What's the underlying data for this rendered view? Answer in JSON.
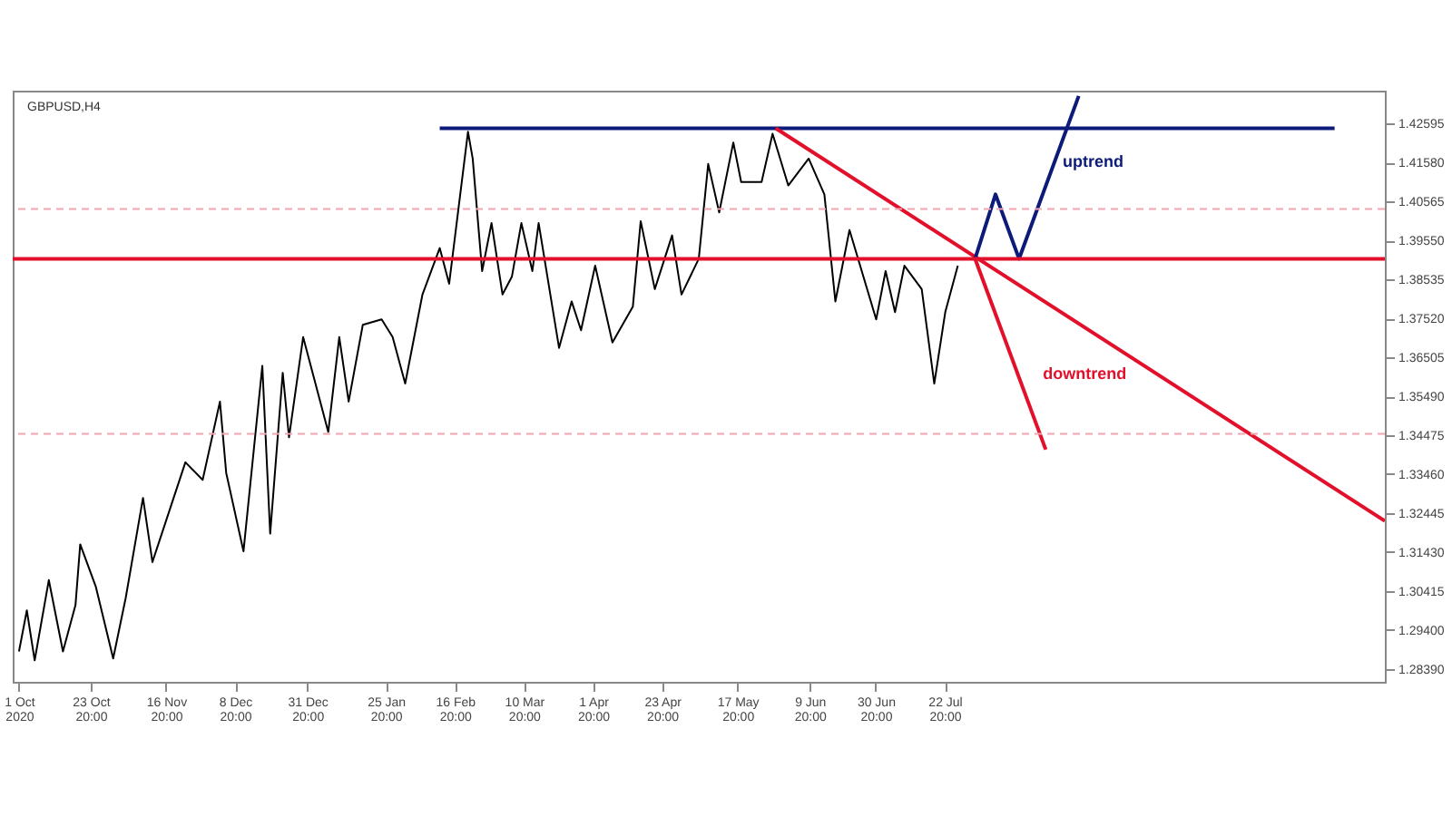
{
  "chart_data": {
    "type": "line",
    "title": "GBPUSD,H4",
    "xlim": [
      "2020-09-29T00:00",
      "2021-12-10T00:00"
    ],
    "ylim": [
      1.2805,
      1.4345
    ],
    "xticks": [
      {
        "value": "2020-10-01T00:00",
        "label": "1 Oct 2020"
      },
      {
        "value": "2020-10-23T20:00",
        "label": "23 Oct 20:00"
      },
      {
        "value": "2020-11-16T20:00",
        "label": "16 Nov 20:00"
      },
      {
        "value": "2020-12-08T20:00",
        "label": "8 Dec 20:00"
      },
      {
        "value": "2020-12-31T20:00",
        "label": "31 Dec 20:00"
      },
      {
        "value": "2021-01-25T20:00",
        "label": "25 Jan 20:00"
      },
      {
        "value": "2021-02-16T20:00",
        "label": "16 Feb 20:00"
      },
      {
        "value": "2021-03-10T20:00",
        "label": "10 Mar 20:00"
      },
      {
        "value": "2021-04-01T20:00",
        "label": "1 Apr 20:00"
      },
      {
        "value": "2021-04-23T20:00",
        "label": "23 Apr 20:00"
      },
      {
        "value": "2021-05-17T20:00",
        "label": "17 May 20:00"
      },
      {
        "value": "2021-06-09T20:00",
        "label": "9 Jun 20:00"
      },
      {
        "value": "2021-06-30T20:00",
        "label": "30 Jun 20:00"
      },
      {
        "value": "2021-07-22T20:00",
        "label": "22 Jul 20:00"
      }
    ],
    "yticks": [
      {
        "value": 1.2839,
        "label": "1.28390"
      },
      {
        "value": 1.294,
        "label": "1.29400"
      },
      1.30415,
      {
        "value": 1.3143,
        "label": "1.31430"
      },
      1.32445,
      {
        "value": 1.3346,
        "label": "1.33460"
      },
      1.34475,
      {
        "value": 1.3549,
        "label": "1.35490"
      },
      1.36505,
      {
        "value": 1.3752,
        "label": "1.37520"
      },
      1.38535,
      {
        "value": 1.3955,
        "label": "1.39550"
      },
      1.40565,
      {
        "value": 1.4158,
        "label": "1.41580"
      },
      1.42595
    ],
    "grid": false,
    "series": [
      {
        "color": "#000000",
        "x": [
          "2020-10-01T00:00",
          "2020-10-03T12:00",
          "2020-10-06T00:00",
          "2020-10-10T12:00",
          "2020-10-15T00:00",
          "2020-10-19T00:00",
          "2020-10-20T12:00",
          "2020-10-25T12:00",
          "2020-10-31T00:00",
          "2020-11-04T00:00",
          "2020-11-09T12:00",
          "2020-11-12T12:00",
          "2020-11-23T00:00",
          "2020-11-28T12:00",
          "2020-12-04T00:00",
          "2020-12-06T00:00",
          "2020-12-11T12:00",
          "2020-12-17T12:00",
          "2020-12-20T00:00",
          "2020-12-24T00:00",
          "2020-12-26T00:00",
          "2020-12-30T12:00",
          "2021-01-07T12:00",
          "2021-01-11T00:00",
          "2021-01-14T00:00",
          "2021-01-18T12:00",
          "2021-01-24T12:00",
          "2021-01-28T00:00",
          "2021-02-01T00:00",
          "2021-02-06T12:00",
          "2021-02-12T00:00",
          "2021-02-15T00:00",
          "2021-02-21T00:00",
          "2021-02-22T12:00",
          "2021-02-25T12:00",
          "2021-02-28T12:00",
          "2021-03-04T00:00",
          "2021-03-07T00:00",
          "2021-03-10T00:00",
          "2021-03-13T12:00",
          "2021-03-15T12:00",
          "2021-03-22T00:00",
          "2021-03-26T00:00",
          "2021-03-29T00:00",
          "2021-04-02T12:00",
          "2021-04-08T00:00",
          "2021-04-14T12:00",
          "2021-04-17T00:00",
          "2021-04-21T12:00",
          "2021-04-27T00:00",
          "2021-04-30T00:00",
          "2021-05-05T12:00",
          "2021-05-08T12:00",
          "2021-05-12T00:00",
          "2021-05-16T12:00",
          "2021-05-19T00:00",
          "2021-05-25T12:00",
          "2021-05-29T00:00",
          "2021-06-03T00:00",
          "2021-06-09T12:00",
          "2021-06-14T12:00",
          "2021-06-18T00:00",
          "2021-06-22T12:00",
          "2021-07-01T00:00",
          "2021-07-04T00:00",
          "2021-07-07T00:00",
          "2021-07-10T00:00",
          "2021-07-15T12:00",
          "2021-07-19T12:00",
          "2021-07-23T00:00",
          "2021-07-27T00:00"
        ],
        "values": [
          1.2884,
          1.2991,
          1.2861,
          1.307,
          1.2884,
          1.3005,
          1.3163,
          1.3052,
          1.2866,
          1.3024,
          1.3284,
          1.3117,
          1.3377,
          1.3331,
          1.3535,
          1.3349,
          1.3145,
          1.3628,
          1.3191,
          1.361,
          1.3442,
          1.3703,
          1.3456,
          1.3703,
          1.3535,
          1.3735,
          1.3749,
          1.3703,
          1.3582,
          1.3814,
          1.3935,
          1.3842,
          1.4238,
          1.4168,
          1.3875,
          1.4,
          1.3814,
          1.3861,
          1.4,
          1.3875,
          1.4,
          1.3675,
          1.3796,
          1.3721,
          1.3889,
          1.3689,
          1.3782,
          1.4005,
          1.3828,
          1.3968,
          1.3814,
          1.3907,
          1.4154,
          1.4028,
          1.421,
          1.4107,
          1.4107,
          1.4233,
          1.4098,
          1.4168,
          1.4075,
          1.3796,
          1.3982,
          1.3749,
          1.3875,
          1.3768,
          1.3889,
          1.3828,
          1.3582,
          1.3768,
          1.3889
        ]
      },
      {
        "color": "#0c1a7a",
        "x": [
          "2021-02-12T00:00",
          "2021-11-24T00:00"
        ],
        "values": [
          1.4247,
          1.4247
        ]
      },
      {
        "color": "#e3102b",
        "x": [
          "2021-05-30T00:00",
          "2021-12-10T00:00"
        ],
        "values": [
          1.4247,
          1.3224
        ]
      },
      {
        "name": "downtrend",
        "color": "#e3102b",
        "x": [
          "2021-08-01T12:00",
          "2021-08-24T00:00"
        ],
        "values": [
          1.3907,
          1.341
        ]
      },
      {
        "name": "uptrend",
        "color": "#0c1a7a",
        "x": [
          "2021-08-01T12:00",
          "2021-08-08T00:00",
          "2021-08-15T12:00",
          "2021-09-03T12:00"
        ],
        "values": [
          1.3907,
          1.4075,
          1.3907,
          1.4331
        ]
      }
    ],
    "ref_lines": [
      {
        "axis": "y",
        "value": 1.3907,
        "color": "#e3102b",
        "line_style": "solid"
      },
      {
        "axis": "y",
        "value": 1.4037,
        "color": "#f4a6b0",
        "line_style": "dashed"
      },
      {
        "axis": "y",
        "value": 1.3451,
        "color": "#f4a6b0",
        "line_style": "dashed"
      }
    ]
  }
}
